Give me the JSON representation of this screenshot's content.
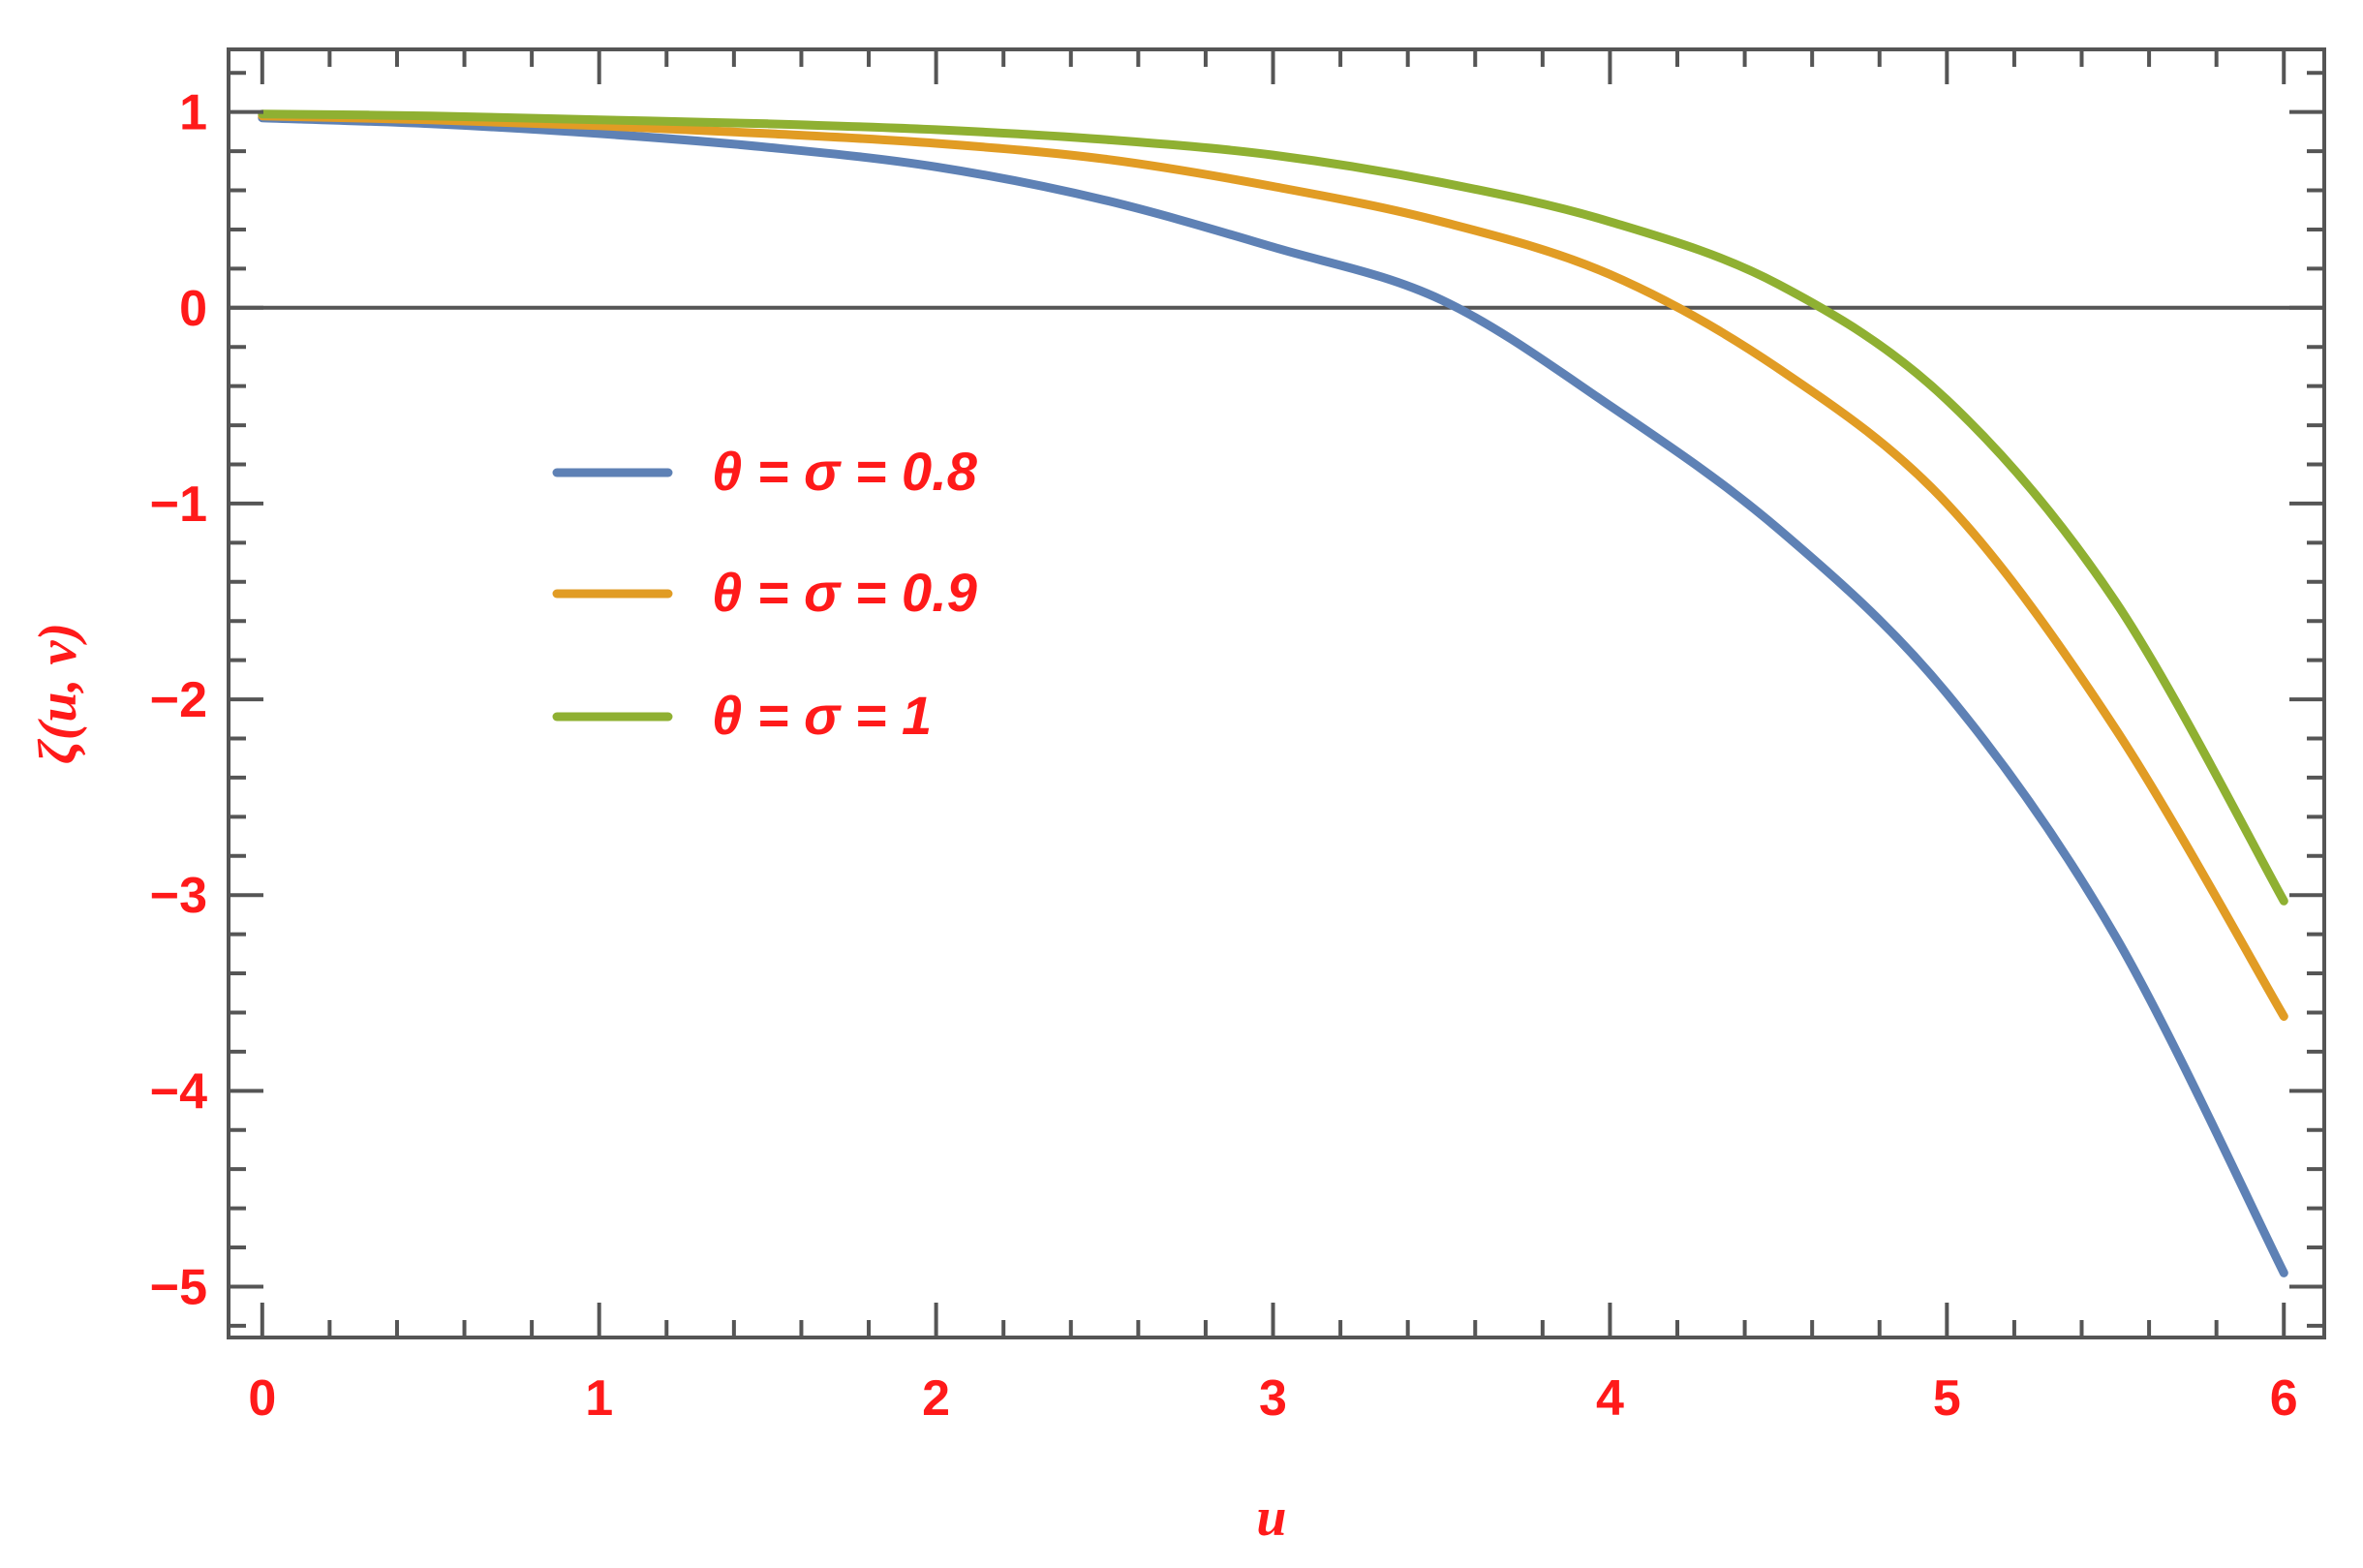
{
  "chart_data": {
    "type": "line",
    "title": "",
    "xlabel": "u",
    "ylabel": "ζ(u, v)",
    "xlim": [
      -0.1,
      6.12
    ],
    "ylim": [
      -5.26,
      1.32
    ],
    "x_ticks": [
      0,
      1,
      2,
      3,
      4,
      5,
      6
    ],
    "x_tick_labels": [
      "0",
      "1",
      "2",
      "3",
      "4",
      "5",
      "6"
    ],
    "y_ticks": [
      1,
      0,
      -1,
      -2,
      -3,
      -4,
      -5
    ],
    "y_tick_labels": [
      "1",
      "0",
      "−1",
      "−2",
      "−3",
      "−4",
      "−5"
    ],
    "grid": false,
    "zero_line": true,
    "legend_position": "left-middle",
    "x": [
      0,
      0.5,
      1,
      1.5,
      2,
      2.5,
      3,
      3.5,
      4,
      4.5,
      5,
      5.5,
      6
    ],
    "series": [
      {
        "name": "θ = σ = 0.8",
        "color": "#5e81b5",
        "values": [
          0.97,
          0.94,
          0.89,
          0.82,
          0.72,
          0.55,
          0.31,
          0.04,
          -0.5,
          -1.13,
          -1.97,
          -3.21,
          -4.93
        ]
      },
      {
        "name": "θ = σ = 0.9",
        "color": "#e19c24",
        "values": [
          0.98,
          0.96,
          0.93,
          0.89,
          0.84,
          0.76,
          0.62,
          0.44,
          0.17,
          -0.31,
          -1.0,
          -2.15,
          -3.62
        ]
      },
      {
        "name": "θ = σ = 1",
        "color": "#8fb032",
        "values": [
          0.99,
          0.98,
          0.96,
          0.94,
          0.91,
          0.86,
          0.78,
          0.64,
          0.44,
          0.12,
          -0.47,
          -1.5,
          -3.03
        ]
      }
    ]
  }
}
